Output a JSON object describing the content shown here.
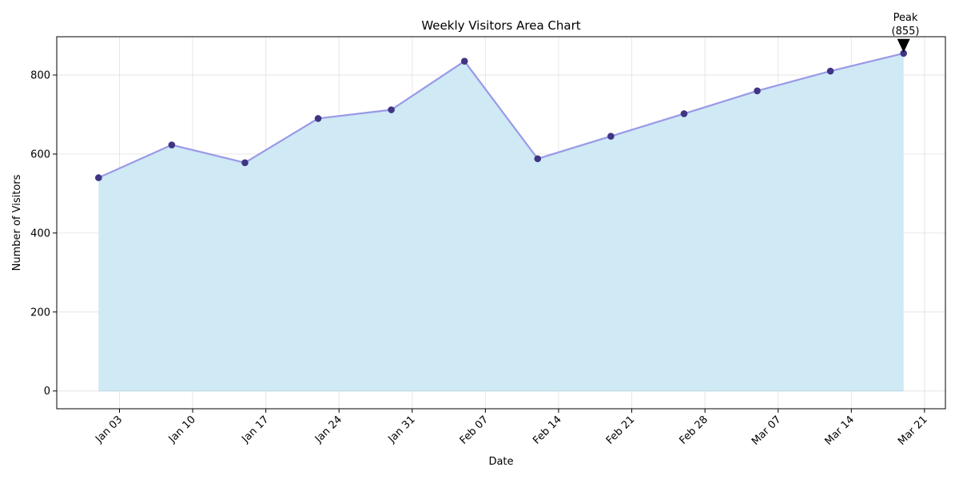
{
  "chart_data": {
    "type": "area",
    "title": "Weekly Visitors Area Chart",
    "xlabel": "Date",
    "ylabel": "Number of Visitors",
    "x": [
      "2023-01-01",
      "2023-01-08",
      "2023-01-15",
      "2023-01-22",
      "2023-01-29",
      "2023-02-05",
      "2023-02-12",
      "2023-02-19",
      "2023-02-26",
      "2023-03-05",
      "2023-03-12",
      "2023-03-19"
    ],
    "values": [
      540,
      623,
      578,
      690,
      712,
      835,
      588,
      645,
      702,
      760,
      810,
      855
    ],
    "xlim": [
      "2022-12-28",
      "2023-03-23"
    ],
    "ylim": [
      -45,
      897
    ],
    "xticks": [
      "Jan 03",
      "Jan 10",
      "Jan 17",
      "Jan 24",
      "Jan 31",
      "Feb 07",
      "Feb 14",
      "Feb 21",
      "Feb 28",
      "Mar 07",
      "Mar 14",
      "Mar 21"
    ],
    "xtick_dates": [
      "2023-01-03",
      "2023-01-10",
      "2023-01-17",
      "2023-01-24",
      "2023-01-31",
      "2023-02-07",
      "2023-02-14",
      "2023-02-21",
      "2023-02-28",
      "2023-03-07",
      "2023-03-14",
      "2023-03-21"
    ],
    "yticks": [
      0,
      200,
      400,
      600,
      800
    ],
    "grid": true,
    "annotation": {
      "line1": "Peak",
      "line2": "(855)",
      "index": 11
    },
    "colors": {
      "fill": "#cfe9f5",
      "line": "#9999e6",
      "marker": "#3f3585",
      "grid": "#e6e6e6",
      "arrow": "#000000"
    }
  }
}
